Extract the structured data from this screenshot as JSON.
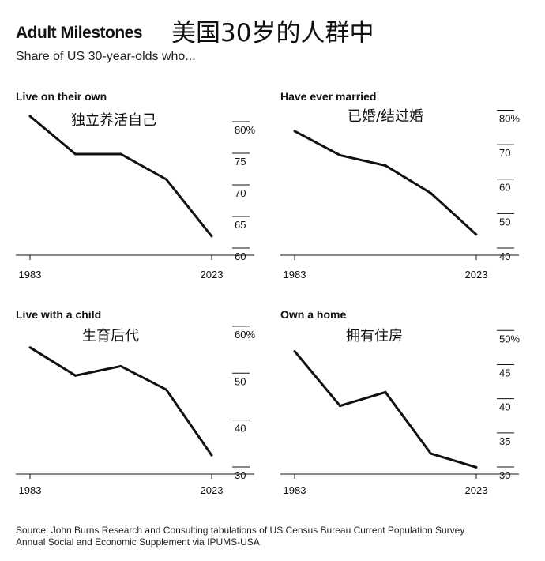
{
  "header": {
    "title": "Adult Milestones",
    "title_cn": "美国30岁的人群中",
    "subtitle": "Share of US 30-year-olds who..."
  },
  "footer": {
    "source_line1": "Source: John Burns Research and Consulting tabulations of US Census Bureau Current Population Survey",
    "source_line2": "Annual Social and Economic Supplement via IPUMS-USA"
  },
  "style": {
    "line_color": "#111111",
    "axis_color": "#111111"
  },
  "chart_data": [
    {
      "type": "line",
      "title": "Live on their own",
      "title_cn": "独立养活自己",
      "x": [
        1983,
        1993,
        2003,
        2013,
        2023
      ],
      "values": [
        82,
        76,
        76,
        72,
        63
      ],
      "ylim": [
        60,
        84
      ],
      "yticks": [
        "80%",
        "75",
        "70",
        "65",
        "60"
      ],
      "ytick_values": [
        80,
        75,
        70,
        65,
        60
      ],
      "xticks": [
        "1983",
        "2023"
      ]
    },
    {
      "type": "line",
      "title": "Have ever married",
      "title_cn": "已婚/结过婚",
      "x": [
        1983,
        1993,
        2003,
        2013,
        2023
      ],
      "values": [
        76,
        69,
        66,
        58,
        46
      ],
      "ylim": [
        40,
        84
      ],
      "yticks": [
        "80%",
        "70",
        "60",
        "50",
        "40"
      ],
      "ytick_values": [
        80,
        70,
        60,
        50,
        40
      ],
      "xticks": [
        "1983",
        "2023"
      ]
    },
    {
      "type": "line",
      "title": "Live with a child",
      "title_cn": "生育后代",
      "x": [
        1983,
        1993,
        2003,
        2013,
        2023
      ],
      "values": [
        57,
        51,
        53,
        48,
        34
      ],
      "ylim": [
        30,
        62
      ],
      "yticks": [
        "60%",
        "50",
        "40",
        "30"
      ],
      "ytick_values": [
        60,
        50,
        40,
        30
      ],
      "xticks": [
        "1983",
        "2023"
      ]
    },
    {
      "type": "line",
      "title": "Own a home",
      "title_cn": "拥有住房",
      "x": [
        1983,
        1993,
        2003,
        2013,
        2023
      ],
      "values": [
        48,
        40,
        42,
        33,
        31
      ],
      "ylim": [
        30,
        52
      ],
      "yticks": [
        "50%",
        "45",
        "40",
        "35",
        "30"
      ],
      "ytick_values": [
        50,
        45,
        40,
        35,
        30
      ],
      "xticks": [
        "1983",
        "2023"
      ]
    }
  ]
}
